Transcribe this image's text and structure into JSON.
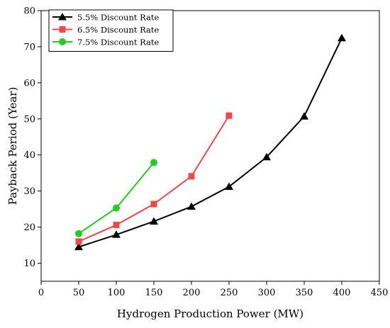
{
  "chart_data": {
    "type": "line",
    "title": "",
    "xlabel": "Hydrogen Production Power (MW)",
    "ylabel": "Payback Period (Year)",
    "xlim": [
      0,
      450
    ],
    "ylim": [
      5,
      80
    ],
    "xticks": [
      0,
      50,
      100,
      150,
      200,
      250,
      300,
      350,
      400,
      450
    ],
    "yticks": [
      10,
      20,
      30,
      40,
      50,
      60,
      70,
      80
    ],
    "grid": false,
    "legend_position": "top-left",
    "series": [
      {
        "name": "5.5% Discount Rate",
        "color": "#000000",
        "marker": "triangle",
        "x": [
          50,
          100,
          150,
          200,
          250,
          300,
          350,
          400
        ],
        "y": [
          14.5,
          17.9,
          21.6,
          25.7,
          31.2,
          39.4,
          50.7,
          72.4
        ]
      },
      {
        "name": "6.5% Discount Rate",
        "color": "#f04848",
        "marker": "square",
        "x": [
          50,
          100,
          150,
          200,
          250
        ],
        "y": [
          16.0,
          20.6,
          26.4,
          34.1,
          50.9
        ]
      },
      {
        "name": "7.5% Discount Rate",
        "color": "#22cc22",
        "marker": "circle",
        "x": [
          50,
          100,
          150
        ],
        "y": [
          18.2,
          25.3,
          37.9
        ]
      }
    ]
  }
}
